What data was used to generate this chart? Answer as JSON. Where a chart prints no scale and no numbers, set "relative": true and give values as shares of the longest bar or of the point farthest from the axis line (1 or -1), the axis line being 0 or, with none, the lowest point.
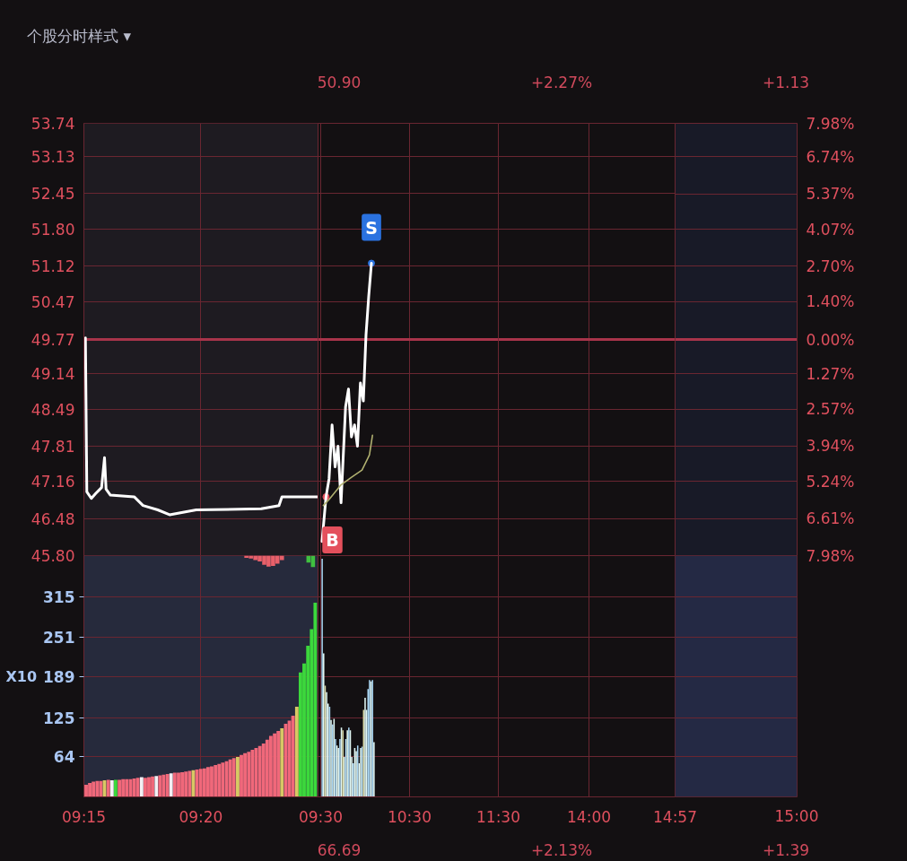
{
  "chart_data": [
    {
      "type": "line",
      "title": "个股分时样式 ▾",
      "annotations": [
        "50.90",
        "+2.27%",
        "+1.13"
      ],
      "series": [
        {
          "color": "#ffffff",
          "x": [
            9.2511,
            9.2521,
            9.2553,
            9.2584,
            9.2626,
            9.2647,
            9.2658,
            9.2689,
            9.2858,
            9.2921,
            9.3026,
            9.311,
            9.33,
            9.3763,
            9.3889,
            9.391,
            9.4152,
            9.4167
          ],
          "values": [
            49.8,
            46.97,
            46.85,
            46.94,
            47.05,
            47.6,
            47.02,
            46.91,
            46.88,
            46.72,
            46.64,
            46.55,
            46.64,
            46.66,
            46.72,
            46.88,
            46.88,
            46.88
          ]
        }
      ],
      "xlim": [
        9.25,
        9.4167
      ],
      "ylim": [
        45.8,
        53.74
      ],
      "yticks": [
        53.74,
        53.13,
        52.45,
        {
          "value": 51.8,
          "label": "51.80"
        },
        51.12,
        50.47,
        49.77,
        49.14,
        48.49,
        47.81,
        47.16,
        46.48,
        {
          "value": 45.8,
          "label": "45.80"
        }
      ],
      "ref_lines": [
        {
          "axis": "y",
          "value": 49.77,
          "color": "#a8344a"
        }
      ],
      "bands": [
        {
          "axis": "x",
          "from": 9.25,
          "to": 9.4167,
          "color": "#1e1b21"
        }
      ],
      "grid": true,
      "tick_labels": "y"
    },
    {
      "type": "line",
      "annotations": [
        {
          "text": "B",
          "x": 9.56,
          "y": 46.88
        },
        {
          "text": "S",
          "x": 10.071,
          "y": 51.17
        }
      ],
      "series": [
        {
          "color": "#ffffff",
          "x": [
            9.515,
            9.56,
            9.594,
            9.628,
            9.662,
            9.695,
            9.729,
            9.78,
            9.813,
            9.846,
            9.881,
            9.914,
            9.947,
            9.98,
            10.01,
            10.04,
            10.071
          ],
          "values": [
            46.06,
            46.88,
            47.21,
            48.2,
            47.43,
            47.81,
            46.77,
            48.53,
            48.86,
            47.98,
            48.2,
            47.81,
            48.97,
            48.64,
            49.85,
            50.55,
            51.17
          ]
        },
        {
          "color": "#b0b070",
          "x": [
            9.53,
            9.594,
            9.729,
            9.847,
            9.965,
            10.049,
            10.083
          ],
          "values": [
            46.72,
            46.83,
            47.1,
            47.24,
            47.37,
            47.65,
            48.01
          ]
        }
      ],
      "xlim": [
        9.47,
        11.5
      ],
      "ylim": [
        45.8,
        53.74
      ],
      "ref_lines": [
        {
          "axis": "y",
          "value": 49.77,
          "color": "#a8344a"
        }
      ],
      "grid": true,
      "tick_labels": false
    },
    {
      "type": "line",
      "xlim": [
        13,
        14.95
      ],
      "ylim": [
        45.8,
        53.74
      ],
      "ref_lines": [
        {
          "axis": "y",
          "value": 49.77,
          "color": "#a8344a"
        }
      ],
      "grid": true,
      "tick_labels": false
    },
    {
      "type": "line",
      "categories": [
        null
      ],
      "ylim": [
        -7.98,
        7.98
      ],
      "yticks": [
        {
          "value": 7.98,
          "label": "7.98%"
        },
        {
          "value": 6.74,
          "label": "6.74%"
        },
        {
          "value": 5.37,
          "label": "5.37%"
        },
        {
          "value": 4.07,
          "label": "4.07%"
        },
        {
          "value": 2.7,
          "label": "2.70%"
        },
        {
          "value": 1.4,
          "label": "1.40%"
        },
        {
          "value": 0,
          "label": "0.00%"
        },
        {
          "value": -1.27,
          "label": "1.27%"
        },
        {
          "value": -2.57,
          "label": "2.57%"
        },
        {
          "value": -3.94,
          "label": "3.94%"
        },
        {
          "value": -5.24,
          "label": "5.24%"
        },
        {
          "value": -6.61,
          "label": "6.61%"
        },
        {
          "value": -7.98,
          "label": "7.98%"
        }
      ],
      "ref_lines": [
        {
          "axis": "y",
          "value": 0,
          "color": "#a8344a"
        }
      ],
      "grid": true,
      "tick_labels": "y"
    },
    {
      "type": "bar",
      "relative": true,
      "x": [
        9.3657,
        9.3689,
        9.3721,
        9.3752,
        9.3784,
        9.3815,
        9.3847,
        9.3878,
        9.391,
        9.4099,
        9.4131
      ],
      "values": [
        -0.2,
        -0.25,
        -0.4,
        -0.5,
        -0.8,
        -0.95,
        -0.9,
        -0.7,
        -0.4,
        -0.6,
        -1
      ],
      "colors": [
        "#e8606a",
        "#e8606a",
        "#e8606a",
        "#e8606a",
        "#e8606a",
        "#e8606a",
        "#e8606a",
        "#e8606a",
        "#e8606a",
        "#40c040",
        "#40c040"
      ],
      "xlim": [
        9.25,
        9.4167
      ],
      "tick_labels": false
    },
    {
      "type": "bar",
      "ylabel": "X10",
      "x": [
        9.2516,
        9.2542,
        9.2568,
        9.2595,
        9.2621,
        9.2647,
        9.2674,
        9.27,
        9.2726,
        9.2753,
        9.2779,
        9.2805,
        9.2832,
        9.2858,
        9.2884,
        9.2911,
        9.2937,
        9.2963,
        9.2989,
        9.3016,
        9.3042,
        9.3068,
        9.3095,
        9.3121,
        9.3147,
        9.3174,
        9.32,
        9.3226,
        9.3253,
        9.3279,
        9.3305,
        9.3332,
        9.3358,
        9.3384,
        9.341,
        9.3437,
        9.3463,
        9.3489,
        9.3516,
        9.3542,
        9.3568,
        9.3595,
        9.3621,
        9.3647,
        9.3674,
        9.37,
        9.3726,
        9.3753,
        9.3779,
        9.3805,
        9.3831,
        9.3858,
        9.3884,
        9.391,
        9.3937,
        9.3963,
        9.3989,
        9.4016,
        9.4042,
        9.4068,
        9.4095,
        9.4121,
        9.4147
      ],
      "values": [
        19,
        22,
        24,
        25,
        25,
        26,
        27,
        26,
        27,
        27,
        28,
        28,
        28,
        29,
        30,
        31,
        30,
        31,
        32,
        33,
        34,
        35,
        36,
        37,
        38,
        38,
        39,
        40,
        41,
        42,
        43,
        44,
        45,
        47,
        48,
        50,
        52,
        54,
        56,
        59,
        61,
        63,
        66,
        69,
        71,
        74,
        77,
        80,
        84,
        90,
        96,
        100,
        104,
        108,
        115,
        120,
        128,
        142,
        196,
        210,
        238,
        264,
        306
      ],
      "colors": [
        "#f0687a",
        "#f0687a",
        "#f0687a",
        "#f0687a",
        "#f0687a",
        "#d8c864",
        "#f0687a",
        "#f4f0f4",
        "#3cd83c",
        "#f0687a",
        "#f0687a",
        "#f0687a",
        "#f0687a",
        "#f0687a",
        "#f0687a",
        "#f4f0f4",
        "#f0687a",
        "#f0687a",
        "#f0687a",
        "#f4f0f4",
        "#f0687a",
        "#f0687a",
        "#f0687a",
        "#f4f0f4",
        "#f0687a",
        "#f0687a",
        "#f0687a",
        "#f0687a",
        "#f0687a",
        "#d8c864",
        "#f0687a",
        "#f0687a",
        "#f0687a",
        "#f0687a",
        "#f0687a",
        "#f0687a",
        "#f0687a",
        "#f0687a",
        "#f0687a",
        "#f0687a",
        "#f0687a",
        "#d8c864",
        "#f0687a",
        "#f0687a",
        "#f0687a",
        "#f0687a",
        "#f0687a",
        "#f0687a",
        "#f0687a",
        "#f0687a",
        "#f0687a",
        "#f0687a",
        "#f0687a",
        "#d8c864",
        "#f0687a",
        "#f0687a",
        "#f0687a",
        "#d8c864",
        "#3cd83c",
        "#3cd83c",
        "#3cd83c",
        "#3cd83c",
        "#3cd83c"
      ],
      "xlim": [
        9.25,
        9.4167
      ],
      "xticks": [
        {
          "value": 9.25,
          "label": "09:15"
        },
        {
          "value": 9.3333,
          "label": "09:20"
        }
      ],
      "ylim": [
        0,
        380
      ],
      "yticks": [
        64,
        125,
        189,
        251,
        315
      ],
      "bands": [
        {
          "axis": "x",
          "from": 9.25,
          "to": 9.4167,
          "color": "#262a3c"
        }
      ],
      "grid": true,
      "tick_labels": "xy"
    },
    {
      "type": "bar",
      "x": [
        9.5167,
        9.5333,
        9.55,
        9.5667,
        9.5833,
        9.6,
        9.6167,
        9.6333,
        9.65,
        9.6667,
        9.6833,
        9.7,
        9.7167,
        9.7333,
        9.75,
        9.7667,
        9.7833,
        9.8,
        9.8167,
        9.8333,
        9.85,
        9.8667,
        9.8833,
        9.9,
        9.9167,
        9.9333,
        9.95,
        9.9667,
        9.9833,
        10.0,
        10.0167,
        10.0333,
        10.05,
        10.0667,
        10.0833,
        10.1
      ],
      "values": [
        375,
        226,
        175,
        165,
        147,
        142,
        121,
        114,
        123,
        91,
        81,
        77,
        91,
        109,
        105,
        63,
        91,
        105,
        109,
        105,
        63,
        53,
        77,
        72,
        81,
        53,
        77,
        79,
        137,
        156,
        137,
        170,
        184,
        182,
        184,
        86
      ],
      "colors": [
        "#a8d4f0",
        "#e2f8f4",
        "#d8d8a8",
        "#e2f8f4",
        "#e2f8f4",
        "#a8d4f0",
        "#e2f8f4",
        "#a8d4f0",
        "#e2f8f4",
        "#a8d4f0",
        "#e2f8f4",
        "#e2f8f4",
        "#a8d4f0",
        "#e2f8f4",
        "#d8d8a8",
        "#e2f8f4",
        "#a8d4f0",
        "#e2f8f4",
        "#a8d4f0",
        "#e2f8f4",
        "#e2f8f4",
        "#a8d4f0",
        "#e2f8f4",
        "#e2f8f4",
        "#a8d4f0",
        "#e2f8f4",
        "#e2f8f4",
        "#a8d4f0",
        "#d8d8a8",
        "#e2f8f4",
        "#e2f8f4",
        "#a8d4f0",
        "#a8d4f0",
        "#e2f8f4",
        "#a8d4f0",
        "#e2f8f4"
      ],
      "xlim": [
        9.47,
        11.5
      ],
      "xticks": [
        {
          "value": 9.5,
          "label": "09:30"
        },
        {
          "value": 10.5,
          "label": "10:30"
        },
        {
          "value": 11.5,
          "label": "11:30"
        }
      ],
      "ylim": [
        0,
        380
      ],
      "grid": true,
      "tick_labels": "x"
    },
    {
      "type": "bar",
      "xlim": [
        13,
        14.95
      ],
      "xticks": [
        {
          "value": 14,
          "label": "14:00"
        },
        {
          "value": 14.95,
          "label": "14:57"
        }
      ],
      "ylim": [
        0,
        380
      ],
      "grid": true,
      "tick_labels": "x"
    },
    {
      "type": "bar",
      "categories": [
        null
      ],
      "annotations": [
        "15:00",
        "66.69",
        "+2.13%",
        "+1.39"
      ],
      "ylim": [
        0,
        380
      ],
      "bands": [
        {
          "axis": "y",
          "from": 0,
          "to": 380,
          "color": "#242944"
        }
      ],
      "grid": true,
      "tick_labels": false
    }
  ]
}
